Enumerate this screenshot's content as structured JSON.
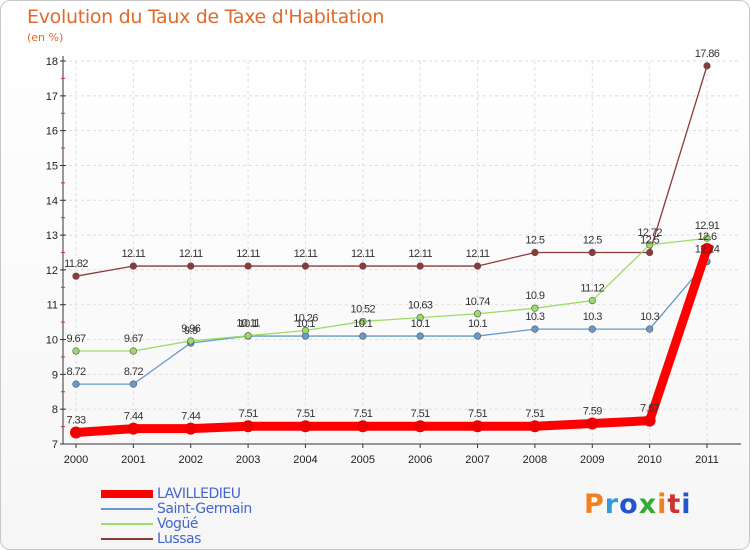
{
  "header": {
    "title": "Evolution du Taux de Taxe d'Habitation",
    "subtitle": "(en %)"
  },
  "logo": {
    "text": "Proxiti",
    "colors": [
      "#f08020",
      "#3399dd",
      "#2255cc",
      "#33aa33",
      "#f08020",
      "#cc3333",
      "#2255cc"
    ]
  },
  "chart_data": {
    "type": "line",
    "x": [
      2000,
      2001,
      2002,
      2003,
      2004,
      2005,
      2006,
      2007,
      2008,
      2009,
      2010,
      2011
    ],
    "ylim": [
      7,
      18
    ],
    "yticks": [
      7,
      8,
      9,
      10,
      11,
      12,
      13,
      14,
      15,
      16,
      17,
      18
    ],
    "grid": true,
    "legend_position": "bottom-left",
    "series": [
      {
        "name": "LAVILLEDIEU",
        "color": "#ff0000",
        "values": [
          7.33,
          7.44,
          7.44,
          7.51,
          7.51,
          7.51,
          7.51,
          7.51,
          7.51,
          7.59,
          7.67,
          12.6
        ],
        "labels": [
          "7.33",
          "7.44",
          "7.44",
          "7.51",
          "7.51",
          "7.51",
          "7.51",
          "7.51",
          "7.51",
          "7.59",
          "7.67",
          "12.6"
        ]
      },
      {
        "name": "Saint-Germain",
        "color": "#6699cc",
        "values": [
          8.72,
          8.72,
          9.9,
          10.1,
          10.1,
          10.1,
          10.1,
          10.1,
          10.3,
          10.3,
          10.3,
          12.24
        ],
        "labels": [
          "8.72",
          "8.72",
          "9.9",
          "10.1",
          "10.1",
          "10.1",
          "10.1",
          "10.1",
          "10.3",
          "10.3",
          "10.3",
          "12.24"
        ]
      },
      {
        "name": "Vogüé",
        "color": "#99dd66",
        "values": [
          9.67,
          9.67,
          9.96,
          10.11,
          10.26,
          10.52,
          10.63,
          10.74,
          10.9,
          11.12,
          12.72,
          12.91
        ],
        "labels": [
          "9.67",
          "9.67",
          "9.96",
          "10.11",
          "10.26",
          "10.52",
          "10.63",
          "10.74",
          "10.9",
          "11.12",
          "12.72",
          "12.91"
        ]
      },
      {
        "name": "Lussas",
        "color": "#8b3a3a",
        "values": [
          11.82,
          12.11,
          12.11,
          12.11,
          12.11,
          12.11,
          12.11,
          12.11,
          12.5,
          12.5,
          12.5,
          17.86
        ],
        "labels": [
          "11.82",
          "12.11",
          "12.11",
          "12.11",
          "12.11",
          "12.11",
          "12.11",
          "12.11",
          "12.5",
          "12.5",
          "12.5",
          "17.86"
        ]
      }
    ]
  }
}
